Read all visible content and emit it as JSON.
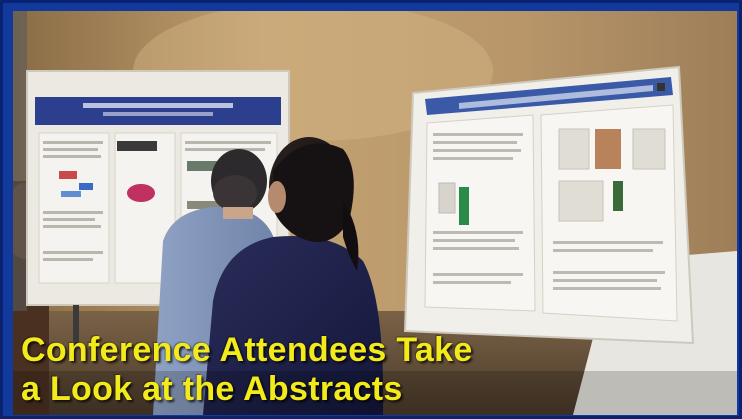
{
  "caption": {
    "line1": "Conference Attendees Take",
    "line2": "a Look at the Abstracts"
  },
  "colors": {
    "frame": "#123a9c",
    "caption_text": "#f2ea1a",
    "wall": "#b49567",
    "poster_header": "#2c3f8f"
  }
}
